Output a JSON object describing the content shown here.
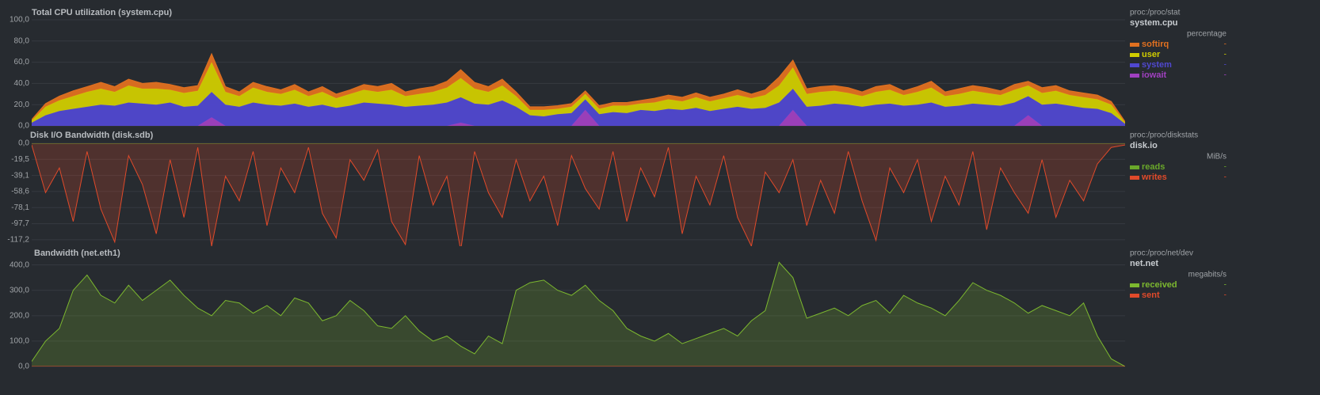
{
  "chart_data": [
    {
      "type": "area",
      "stacked": true,
      "title": "Total CPU utilization (system.cpu)",
      "source": "proc:/proc/stat",
      "context": "system.cpu",
      "units": "percentage",
      "ylim": [
        0,
        100
      ],
      "yticks": [
        {
          "value": 0,
          "label": "0,0"
        },
        {
          "value": 20,
          "label": "20,0"
        },
        {
          "value": 40,
          "label": "40,0"
        },
        {
          "value": 60,
          "label": "60,0"
        },
        {
          "value": 80,
          "label": "80,0"
        },
        {
          "value": 100,
          "label": "100,0"
        }
      ],
      "series": [
        {
          "name": "softirq",
          "color": "#e07020",
          "current": "-",
          "values": [
            1,
            3,
            4,
            5,
            5,
            6,
            5,
            6,
            5,
            6,
            5,
            5,
            5,
            8,
            5,
            4,
            5,
            5,
            4,
            5,
            4,
            5,
            4,
            4,
            5,
            5,
            6,
            4,
            5,
            5,
            6,
            8,
            6,
            5,
            6,
            4,
            3,
            3,
            3,
            3,
            3,
            3,
            3,
            3,
            3,
            4,
            4,
            4,
            4,
            4,
            4,
            5,
            4,
            5,
            8,
            7,
            5,
            5,
            5,
            5,
            4,
            5,
            5,
            4,
            5,
            6,
            4,
            5,
            5,
            5,
            4,
            5,
            4,
            5,
            5,
            4,
            4,
            4,
            3,
            1
          ]
        },
        {
          "name": "user",
          "color": "#d0cc00",
          "current": "-",
          "values": [
            2,
            8,
            10,
            12,
            14,
            15,
            13,
            16,
            14,
            15,
            12,
            13,
            14,
            28,
            12,
            10,
            14,
            12,
            11,
            13,
            10,
            12,
            9,
            11,
            12,
            11,
            14,
            10,
            11,
            12,
            14,
            18,
            14,
            12,
            14,
            10,
            5,
            6,
            5,
            6,
            5,
            5,
            6,
            7,
            6,
            8,
            9,
            8,
            10,
            9,
            10,
            11,
            10,
            12,
            16,
            20,
            12,
            13,
            12,
            11,
            10,
            12,
            13,
            10,
            12,
            14,
            10,
            11,
            12,
            11,
            10,
            12,
            10,
            11,
            12,
            10,
            10,
            9,
            8,
            1
          ]
        },
        {
          "name": "system",
          "color": "#5048d0",
          "current": "-",
          "values": [
            3,
            10,
            14,
            16,
            18,
            20,
            19,
            22,
            21,
            20,
            22,
            18,
            19,
            24,
            20,
            18,
            22,
            20,
            19,
            21,
            18,
            20,
            17,
            19,
            22,
            21,
            20,
            18,
            19,
            20,
            22,
            24,
            21,
            20,
            24,
            18,
            10,
            9,
            11,
            12,
            10,
            11,
            13,
            12,
            15,
            14,
            16,
            15,
            17,
            14,
            16,
            18,
            16,
            17,
            22,
            20,
            18,
            19,
            21,
            20,
            18,
            20,
            21,
            19,
            20,
            22,
            18,
            19,
            21,
            20,
            19,
            22,
            18,
            20,
            21,
            19,
            17,
            16,
            12,
            2
          ]
        },
        {
          "name": "iowait",
          "color": "#a040c0",
          "current": "-",
          "values": [
            0,
            0,
            0,
            0,
            0,
            0,
            0,
            0,
            0,
            0,
            0,
            0,
            0,
            8,
            0,
            0,
            0,
            0,
            0,
            0,
            0,
            0,
            0,
            0,
            0,
            0,
            0,
            0,
            0,
            0,
            0,
            3,
            0,
            0,
            0,
            0,
            0,
            0,
            0,
            0,
            15,
            0,
            0,
            0,
            0,
            0,
            0,
            0,
            0,
            0,
            0,
            0,
            0,
            0,
            0,
            15,
            0,
            0,
            0,
            0,
            0,
            0,
            0,
            0,
            0,
            0,
            0,
            0,
            0,
            0,
            0,
            0,
            10,
            0,
            0,
            0,
            0,
            0,
            0,
            0
          ]
        }
      ]
    },
    {
      "type": "area",
      "stacked": false,
      "title": "Disk I/O Bandwidth (disk.sdb)",
      "source": "proc:/proc/diskstats",
      "context": "disk.io",
      "units": "MiB/s",
      "ylim": [
        -125,
        0
      ],
      "yticks": [
        {
          "value": 0,
          "label": "0,0"
        },
        {
          "value": -19.53,
          "label": "-19,5"
        },
        {
          "value": -39.06,
          "label": "-39,1"
        },
        {
          "value": -58.59,
          "label": "-58,6"
        },
        {
          "value": -78.13,
          "label": "-78,1"
        },
        {
          "value": -97.66,
          "label": "-97,7"
        },
        {
          "value": -117.19,
          "label": "-117,2"
        }
      ],
      "series": [
        {
          "name": "reads",
          "color": "#6aa82a",
          "current": "-",
          "values": [
            0,
            0,
            0,
            0,
            0,
            0,
            0,
            0,
            0,
            0,
            0,
            0,
            0,
            0,
            0,
            0,
            0,
            0,
            0,
            0,
            0,
            0,
            0,
            0,
            0,
            0,
            0,
            0,
            0,
            0,
            0,
            0,
            0,
            0,
            0,
            0,
            0,
            0,
            0,
            0,
            0,
            0,
            0,
            0,
            0,
            0,
            0,
            0,
            0,
            0,
            0,
            0,
            0,
            0,
            0,
            0,
            0,
            0,
            0,
            0,
            0,
            0,
            0,
            0,
            0,
            0,
            0,
            0,
            0,
            0,
            0,
            0,
            0,
            0,
            0,
            0,
            0,
            0,
            0,
            0
          ]
        },
        {
          "name": "writes",
          "color": "#e04a2a",
          "current": "-",
          "values": [
            -2,
            -60,
            -30,
            -95,
            -10,
            -80,
            -120,
            -15,
            -50,
            -110,
            -20,
            -90,
            -5,
            -125,
            -40,
            -70,
            -10,
            -100,
            -30,
            -60,
            -5,
            -85,
            -115,
            -20,
            -45,
            -8,
            -95,
            -123,
            -15,
            -75,
            -40,
            -130,
            -10,
            -60,
            -90,
            -20,
            -70,
            -40,
            -100,
            -15,
            -55,
            -80,
            -10,
            -95,
            -30,
            -65,
            -5,
            -110,
            -40,
            -75,
            -15,
            -90,
            -125,
            -35,
            -60,
            -20,
            -100,
            -45,
            -85,
            -10,
            -70,
            -118,
            -30,
            -60,
            -20,
            -95,
            -40,
            -75,
            -10,
            -105,
            -30,
            -60,
            -85,
            -20,
            -90,
            -45,
            -70,
            -25,
            -5,
            -2
          ]
        }
      ]
    },
    {
      "type": "area",
      "stacked": false,
      "title": "Bandwidth (net.eth1)",
      "source": "proc:/proc/net/dev",
      "context": "net.net",
      "units": "megabits/s",
      "ylim": [
        0,
        430
      ],
      "yticks": [
        {
          "value": 0,
          "label": "0,0"
        },
        {
          "value": 100,
          "label": "100,0"
        },
        {
          "value": 200,
          "label": "200,0"
        },
        {
          "value": 300,
          "label": "300,0"
        },
        {
          "value": 400,
          "label": "400,0"
        }
      ],
      "series": [
        {
          "name": "received",
          "color": "#7cb82f",
          "current": "-",
          "values": [
            20,
            100,
            150,
            300,
            360,
            280,
            250,
            320,
            260,
            300,
            340,
            280,
            230,
            200,
            260,
            250,
            210,
            240,
            200,
            270,
            250,
            180,
            200,
            260,
            220,
            160,
            150,
            200,
            140,
            100,
            120,
            80,
            50,
            120,
            90,
            300,
            330,
            340,
            300,
            280,
            320,
            260,
            220,
            150,
            120,
            100,
            130,
            90,
            110,
            130,
            150,
            120,
            180,
            220,
            410,
            350,
            190,
            210,
            230,
            200,
            240,
            260,
            210,
            280,
            250,
            230,
            200,
            260,
            330,
            300,
            280,
            250,
            210,
            240,
            220,
            200,
            250,
            120,
            30,
            0
          ]
        },
        {
          "name": "sent",
          "color": "#e04a2a",
          "current": "-",
          "values": [
            0,
            0,
            0,
            0,
            0,
            0,
            0,
            0,
            0,
            0,
            0,
            0,
            0,
            0,
            0,
            0,
            0,
            0,
            0,
            0,
            0,
            0,
            0,
            0,
            0,
            0,
            0,
            0,
            0,
            0,
            0,
            0,
            0,
            0,
            0,
            0,
            0,
            0,
            0,
            0,
            0,
            0,
            0,
            0,
            0,
            0,
            0,
            0,
            0,
            0,
            0,
            0,
            0,
            0,
            0,
            0,
            0,
            0,
            0,
            0,
            0,
            0,
            0,
            0,
            0,
            0,
            0,
            0,
            0,
            0,
            0,
            0,
            0,
            0,
            0,
            0,
            0,
            0,
            0,
            0
          ]
        }
      ]
    }
  ]
}
